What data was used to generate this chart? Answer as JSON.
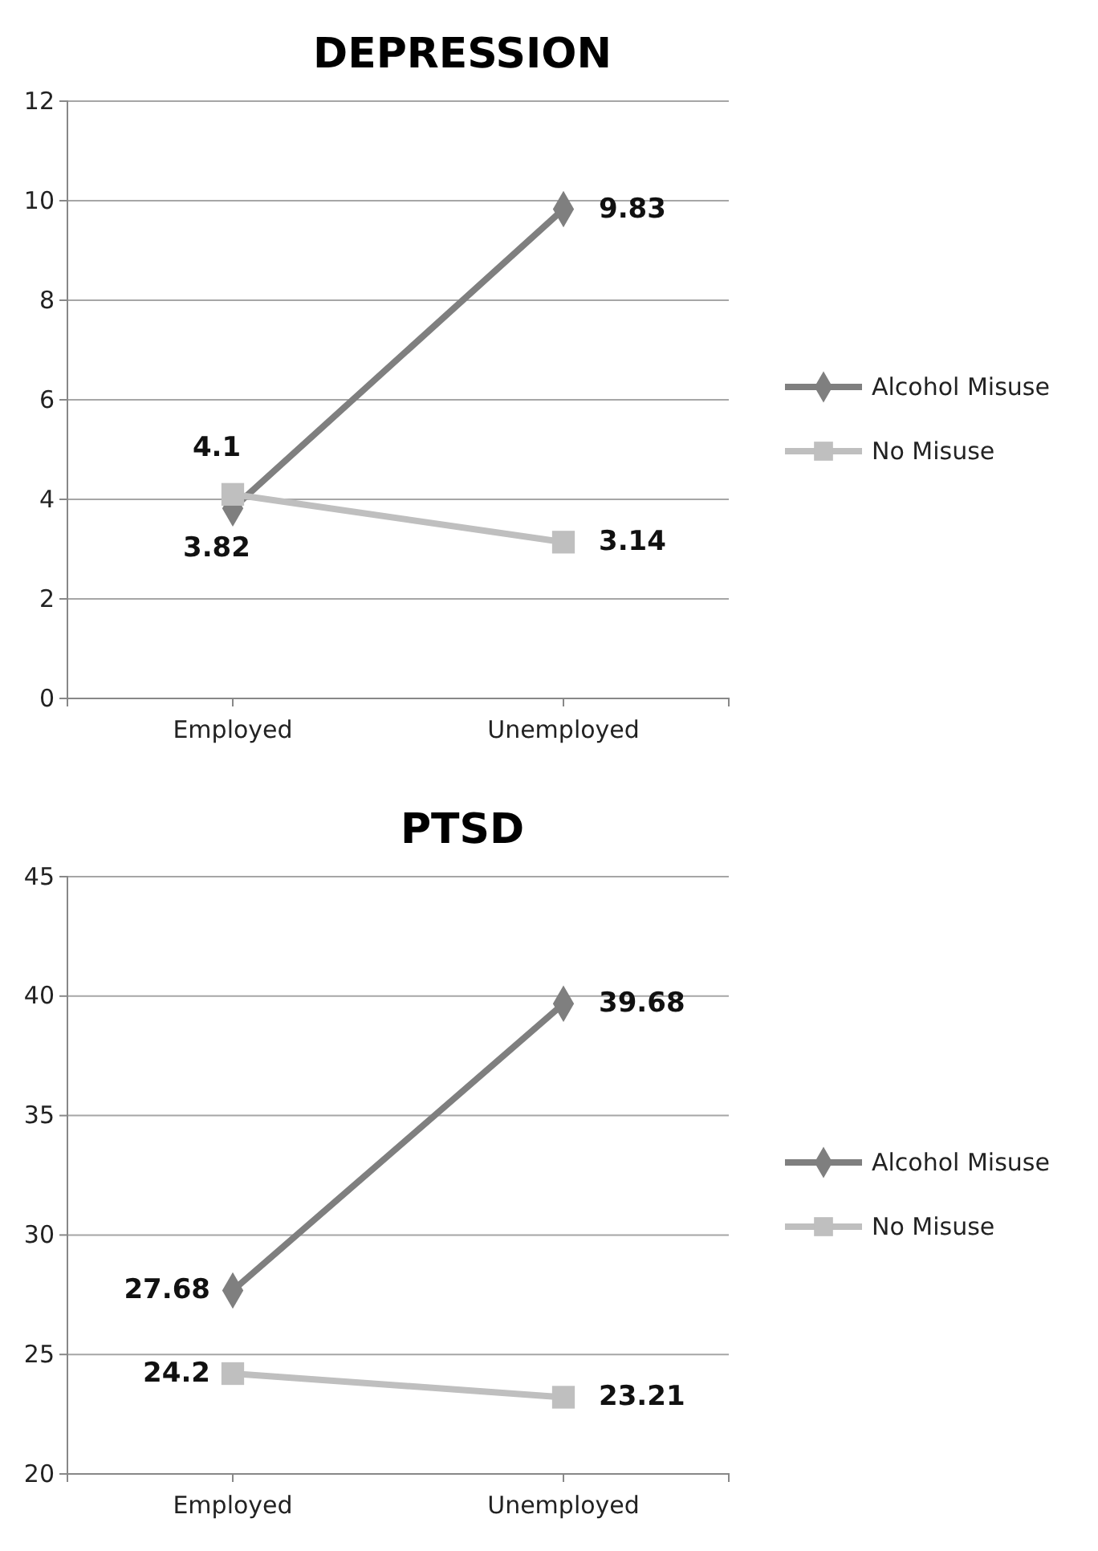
{
  "chart_data": [
    {
      "type": "line",
      "title": "DEPRESSION",
      "categories": [
        "Employed",
        "Unemployed"
      ],
      "series": [
        {
          "name": "Alcohol Misuse",
          "color": "#7f7f7f",
          "marker": "diamond",
          "values": [
            3.82,
            9.83
          ]
        },
        {
          "name": "No Misuse",
          "color": "#bfbfbf",
          "marker": "square",
          "values": [
            4.1,
            3.14
          ]
        }
      ],
      "ylim": [
        0,
        12
      ],
      "yticks": [
        0,
        2,
        4,
        6,
        8,
        10,
        12
      ],
      "grid": "y",
      "legend": "right",
      "data_labels": true
    },
    {
      "type": "line",
      "title": "PTSD",
      "categories": [
        "Employed",
        "Unemployed"
      ],
      "series": [
        {
          "name": "Alcohol Misuse",
          "color": "#7f7f7f",
          "marker": "diamond",
          "values": [
            27.68,
            39.68
          ]
        },
        {
          "name": "No Misuse",
          "color": "#bfbfbf",
          "marker": "square",
          "values": [
            24.2,
            23.21
          ]
        }
      ],
      "ylim": [
        20,
        45
      ],
      "yticks": [
        20,
        25,
        30,
        35,
        40,
        45
      ],
      "grid": "y",
      "legend": "right",
      "data_labels": true
    }
  ]
}
